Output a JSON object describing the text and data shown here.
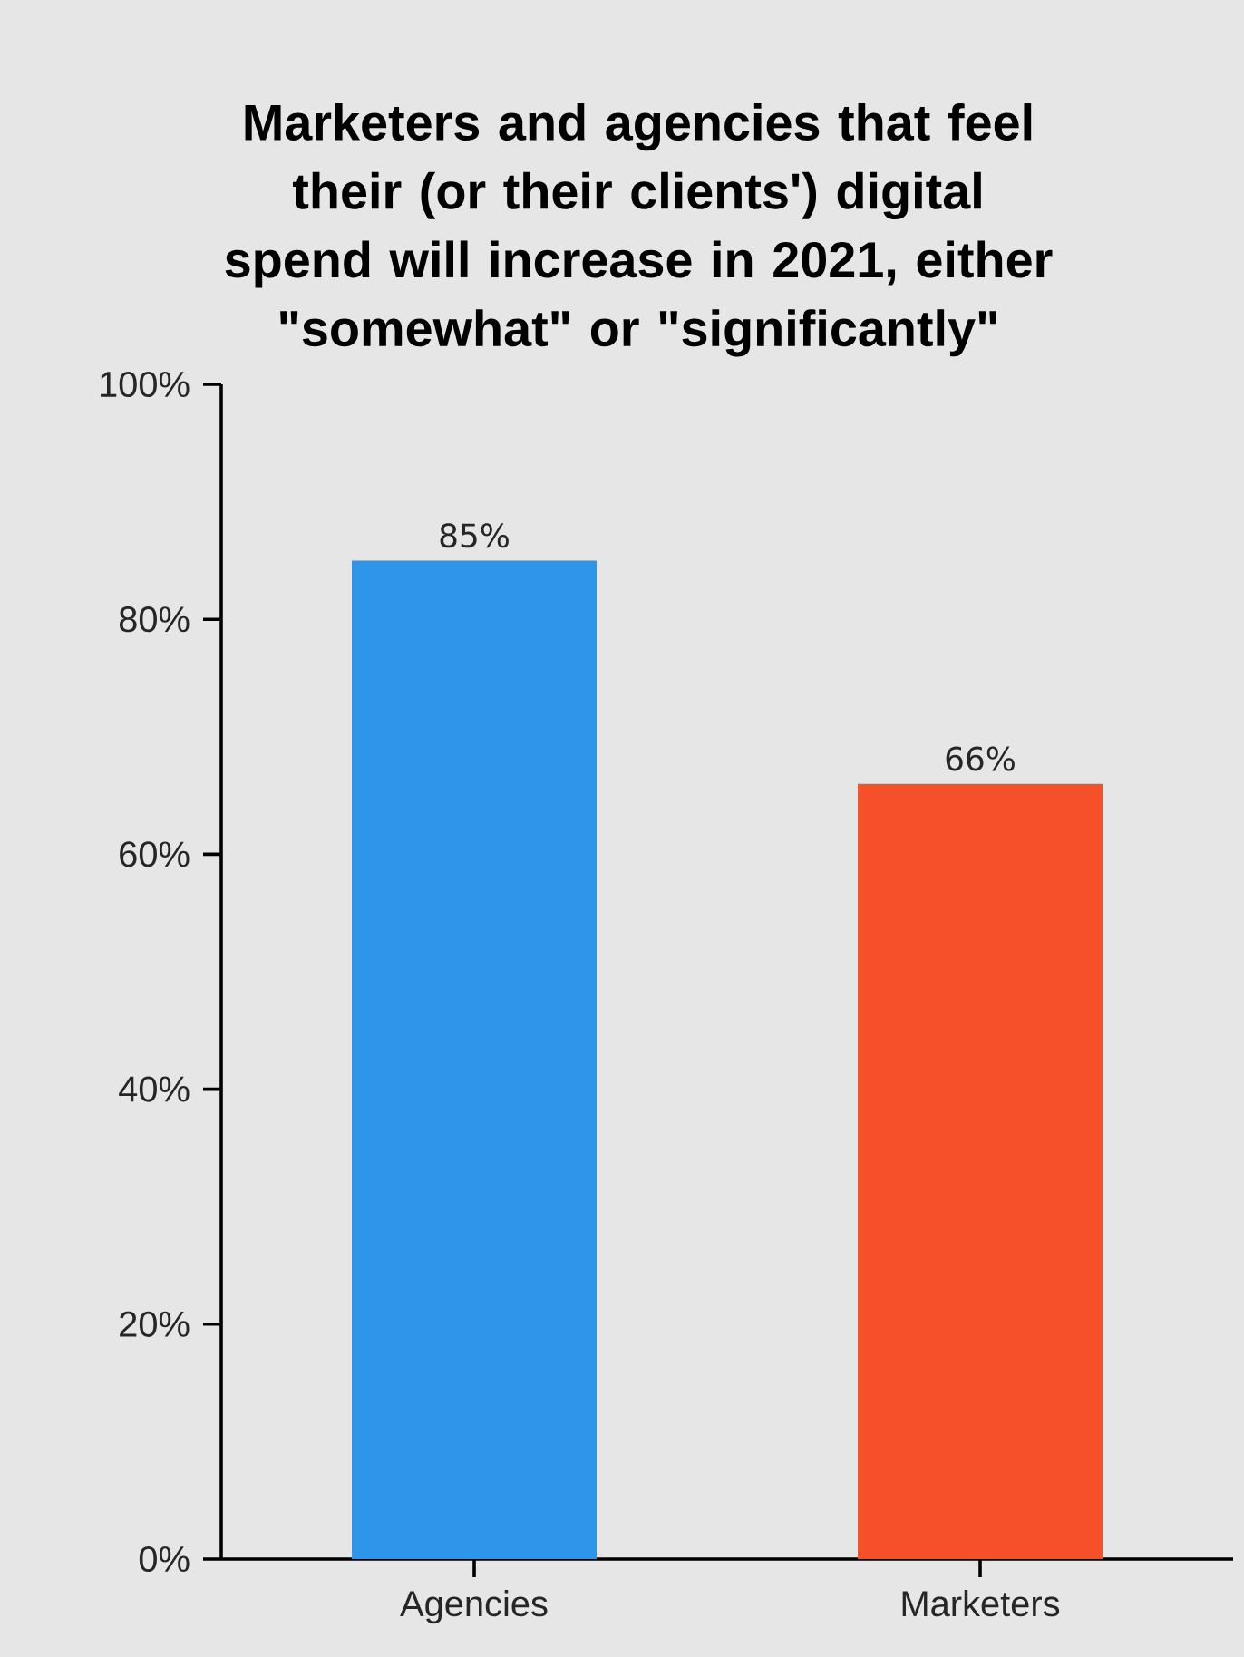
{
  "chart_data": {
    "type": "bar",
    "title": "Marketers and agencies that feel their (or their clients') digital spend will increase in 2021, either \"somewhat\" or \"significantly\"",
    "categories": [
      "Agencies",
      "Marketers"
    ],
    "values": [
      85,
      66
    ],
    "colors": [
      "#2e96ea",
      "#f5502a"
    ],
    "value_labels": [
      "85%",
      "66%"
    ],
    "ylim": [
      0,
      100
    ],
    "yticks": [
      {
        "value": 0,
        "label": "0%"
      },
      {
        "value": 20,
        "label": "20%"
      },
      {
        "value": 40,
        "label": "40%"
      },
      {
        "value": 60,
        "label": "60%"
      },
      {
        "value": 80,
        "label": "80%"
      },
      {
        "value": 100,
        "label": "100%"
      }
    ],
    "grid": false
  }
}
